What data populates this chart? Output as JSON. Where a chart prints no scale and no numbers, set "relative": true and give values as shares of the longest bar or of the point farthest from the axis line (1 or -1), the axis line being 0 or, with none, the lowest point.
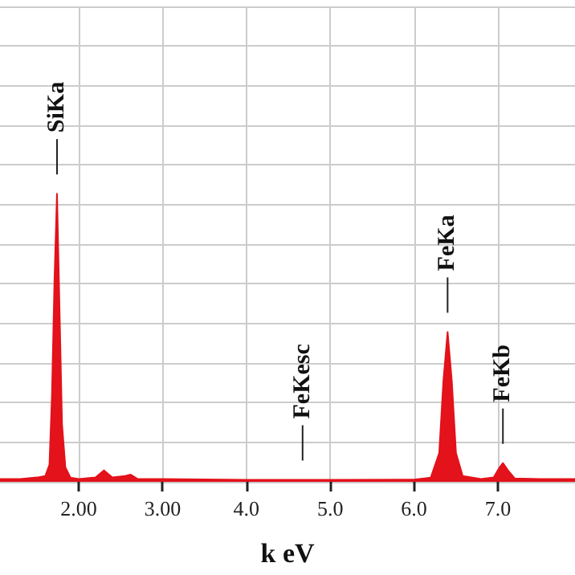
{
  "chart_data": {
    "type": "area",
    "relative": true,
    "xlabel": "k eV",
    "grid": true,
    "marker": "none",
    "xlim": [
      1.06,
      7.92
    ],
    "xticks": [
      {
        "value": 2,
        "label": "2.00"
      },
      {
        "value": 3,
        "label": "3.00"
      },
      {
        "value": 4,
        "label": "4.0"
      },
      {
        "value": 5,
        "label": "5.0"
      },
      {
        "value": 6,
        "label": "6.0"
      },
      {
        "value": 7,
        "label": "7.0"
      }
    ],
    "x": [
      1.06,
      1.3,
      1.5,
      1.6,
      1.65,
      1.68,
      1.71,
      1.74,
      1.77,
      1.8,
      1.84,
      1.9,
      2.0,
      2.2,
      2.3,
      2.4,
      2.55,
      2.62,
      2.7,
      3.0,
      4.0,
      5.0,
      6.0,
      6.2,
      6.3,
      6.35,
      6.4,
      6.45,
      6.5,
      6.58,
      6.8,
      6.95,
      7.02,
      7.06,
      7.12,
      7.2,
      7.5,
      7.92
    ],
    "series": [
      {
        "color": "#e3121b",
        "values": [
          0.01,
          0.01,
          0.015,
          0.02,
          0.06,
          0.3,
          0.7,
          1.0,
          0.6,
          0.2,
          0.05,
          0.015,
          0.01,
          0.015,
          0.04,
          0.015,
          0.02,
          0.025,
          0.01,
          0.01,
          0.007,
          0.007,
          0.008,
          0.015,
          0.1,
          0.35,
          0.52,
          0.35,
          0.1,
          0.02,
          0.01,
          0.015,
          0.05,
          0.065,
          0.04,
          0.012,
          0.01,
          0.01
        ]
      }
    ],
    "annotations": [
      {
        "text": "SiKa",
        "x": 1.74,
        "y": 1.0
      },
      {
        "text": "FeKesc",
        "x": 4.67,
        "y": 0.007
      },
      {
        "text": "FeKa",
        "x": 6.4,
        "y": 0.52
      },
      {
        "text": "FeKb",
        "x": 7.06,
        "y": 0.065
      }
    ]
  }
}
